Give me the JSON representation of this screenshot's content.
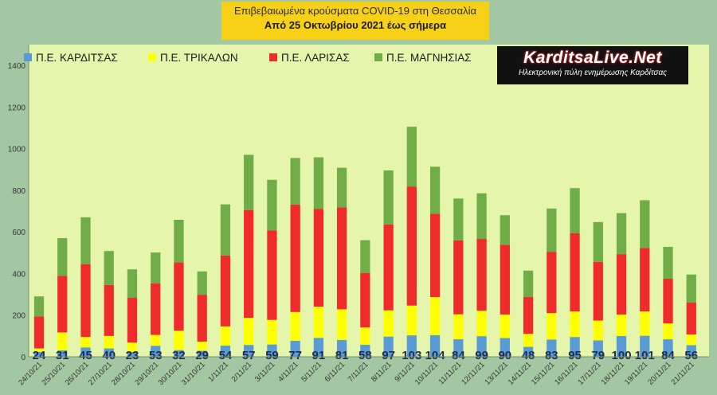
{
  "header": {
    "title": "Επιβεβαιωμένα κρούσματα COVID-19 στη Θεσσαλία",
    "subtitle": "Από 25 Οκτωβρίου 2021 έως σήμερα"
  },
  "logo": {
    "name": "KarditsaLive.Net",
    "tagline": "Ηλεκτρονική πύλη ενημέρωσης Καρδίτσας"
  },
  "chart_data": {
    "type": "bar",
    "stacked": true,
    "title": "Επιβεβαιωμένα κρούσματα COVID-19 στη Θεσσαλία",
    "subtitle": "Από 25 Οκτωβρίου 2021 έως σήμερα",
    "ylim": [
      0,
      1400
    ],
    "yticks": [
      0,
      200,
      400,
      600,
      800,
      1000,
      1200,
      1400
    ],
    "grid": false,
    "legend_position": "top",
    "colors": {
      "background": "#a3c7a3",
      "plot_background": "#e6f5ac",
      "karditsa": "#5b9bd5",
      "trikala": "#ffff00",
      "larisa": "#ef2b2b",
      "magnisia": "#70ad47"
    },
    "categories": [
      "24/10/21",
      "25/10/21",
      "26/10/21",
      "27/10/21",
      "28/10/21",
      "29/10/21",
      "30/10/21",
      "31/10/21",
      "1/11/21",
      "2/11/21",
      "3/11/21",
      "4/11/21",
      "5/11/21",
      "6/11/21",
      "7/11/21",
      "8/11/21",
      "9/11/21",
      "10/11/21",
      "11/11/21",
      "12/11/21",
      "13/11/21",
      "14/11/21",
      "15/11/21",
      "16/11/21",
      "17/11/21",
      "18/11/21",
      "19/11/21",
      "20/11/21",
      "21/11/21"
    ],
    "series": [
      {
        "name": "Π.Ε. ΚΑΡΔΙΤΣΑΣ",
        "color": "#5b9bd5",
        "values": [
          24,
          31,
          45,
          40,
          23,
          53,
          32,
          29,
          54,
          57,
          59,
          77,
          91,
          81,
          58,
          97,
          103,
          104,
          84,
          99,
          90,
          48,
          83,
          95,
          79,
          100,
          101,
          84,
          56
        ]
      },
      {
        "name": "Π.Ε. ΤΡΙΚΑΛΩΝ",
        "color": "#ffff00",
        "values": [
          16,
          86,
          50,
          60,
          45,
          52,
          93,
          44,
          92,
          130,
          118,
          138,
          150,
          147,
          83,
          126,
          143,
          183,
          120,
          122,
          113,
          62,
          127,
          123,
          95,
          103,
          117,
          76,
          51
        ]
      },
      {
        "name": "Π.Ε. ΛΑΡΙΣΑΣ",
        "color": "#ef2b2b",
        "values": [
          153,
          272,
          350,
          245,
          215,
          248,
          328,
          225,
          340,
          518,
          430,
          516,
          470,
          490,
          262,
          413,
          572,
          400,
          355,
          345,
          335,
          178,
          293,
          375,
          282,
          290,
          305,
          215,
          153
        ]
      },
      {
        "name": "Π.Ε. ΜΑΓΝΗΣΙΑΣ",
        "color": "#70ad47",
        "values": [
          97,
          181,
          225,
          163,
          137,
          148,
          205,
          112,
          246,
          265,
          243,
          224,
          247,
          190,
          157,
          259,
          287,
          226,
          201,
          219,
          142,
          126,
          209,
          217,
          191,
          197,
          229,
          153,
          135
        ]
      }
    ],
    "data_labels": [
      24,
      31,
      45,
      40,
      23,
      53,
      32,
      29,
      54,
      57,
      59,
      77,
      91,
      81,
      58,
      97,
      103,
      104,
      84,
      99,
      90,
      48,
      83,
      95,
      79,
      100,
      101,
      84,
      56
    ]
  }
}
